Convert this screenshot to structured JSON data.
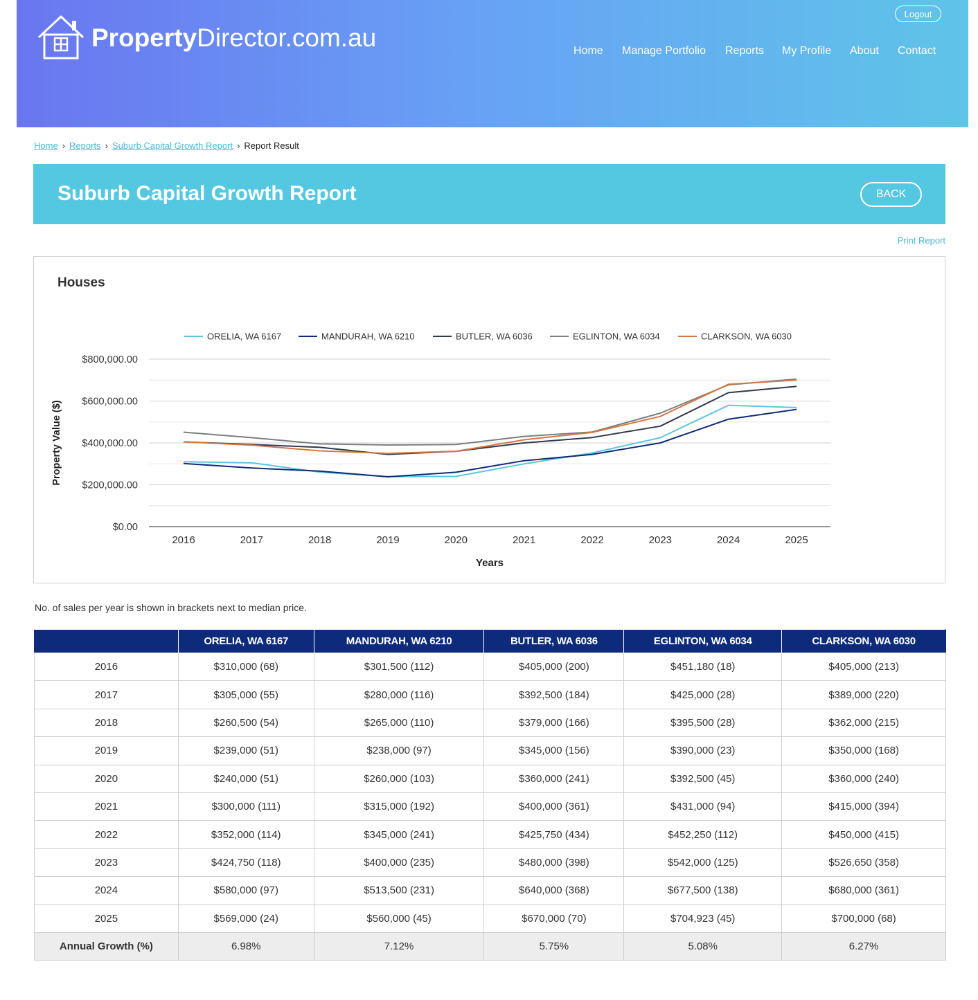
{
  "header": {
    "logo_strong": "Property",
    "logo_light": "Director.com.au",
    "logout_label": "Logout",
    "nav": [
      {
        "label": "Home"
      },
      {
        "label": "Manage Portfolio"
      },
      {
        "label": "Reports"
      },
      {
        "label": "My Profile"
      },
      {
        "label": "About"
      },
      {
        "label": "Contact"
      }
    ]
  },
  "breadcrumb": {
    "items": [
      "Home",
      "Reports",
      "Suburb Capital Growth Report"
    ],
    "current": "Report Result"
  },
  "banner": {
    "title": "Suburb Capital Growth Report",
    "back_label": "BACK"
  },
  "print_report_label": "Print Report",
  "chart_data": {
    "type": "line",
    "title": "Houses",
    "xlabel": "Years",
    "ylabel": "Property Value ($)",
    "x": [
      "2016",
      "2017",
      "2018",
      "2019",
      "2020",
      "2021",
      "2022",
      "2023",
      "2024",
      "2025"
    ],
    "ylim": [
      0,
      800000
    ],
    "yticks": [
      "$0.00",
      "$200,000.00",
      "$400,000.00",
      "$600,000.00",
      "$800,000.00"
    ],
    "legend_position": "top",
    "grid": true,
    "series": [
      {
        "name": "ORELIA, WA 6167",
        "color": "#5bc5df",
        "values": [
          310000,
          305000,
          260500,
          239000,
          240000,
          300000,
          352000,
          424750,
          580000,
          569000
        ]
      },
      {
        "name": "MANDURAH, WA 6210",
        "color": "#0d2b7a",
        "values": [
          301500,
          280000,
          265000,
          238000,
          260000,
          315000,
          345000,
          400000,
          513500,
          560000
        ]
      },
      {
        "name": "BUTLER, WA 6036",
        "color": "#2f3a4f",
        "values": [
          405000,
          392500,
          379000,
          345000,
          360000,
          400000,
          425750,
          480000,
          640000,
          670000
        ]
      },
      {
        "name": "EGLINTON, WA 6034",
        "color": "#7a7e80",
        "values": [
          451180,
          425000,
          395500,
          390000,
          392500,
          431000,
          452250,
          542000,
          677500,
          704923
        ]
      },
      {
        "name": "CLARKSON, WA 6030",
        "color": "#d6773f",
        "values": [
          405000,
          389000,
          362000,
          350000,
          360000,
          415000,
          450000,
          526650,
          680000,
          700000
        ]
      }
    ]
  },
  "note": "No. of sales per year is shown in brackets next to median price.",
  "table": {
    "headers": [
      "",
      "ORELIA, WA 6167",
      "MANDURAH, WA 6210",
      "BUTLER, WA 6036",
      "EGLINTON, WA 6034",
      "CLARKSON, WA 6030"
    ],
    "rows": [
      [
        "2016",
        "$310,000 (68)",
        "$301,500 (112)",
        "$405,000 (200)",
        "$451,180 (18)",
        "$405,000 (213)"
      ],
      [
        "2017",
        "$305,000 (55)",
        "$280,000 (116)",
        "$392,500 (184)",
        "$425,000 (28)",
        "$389,000 (220)"
      ],
      [
        "2018",
        "$260,500 (54)",
        "$265,000 (110)",
        "$379,000 (166)",
        "$395,500 (28)",
        "$362,000 (215)"
      ],
      [
        "2019",
        "$239,000 (51)",
        "$238,000 (97)",
        "$345,000 (156)",
        "$390,000 (23)",
        "$350,000 (168)"
      ],
      [
        "2020",
        "$240,000 (51)",
        "$260,000 (103)",
        "$360,000 (241)",
        "$392,500 (45)",
        "$360,000 (240)"
      ],
      [
        "2021",
        "$300,000 (111)",
        "$315,000 (192)",
        "$400,000 (361)",
        "$431,000 (94)",
        "$415,000 (394)"
      ],
      [
        "2022",
        "$352,000 (114)",
        "$345,000 (241)",
        "$425,750 (434)",
        "$452,250 (112)",
        "$450,000 (415)"
      ],
      [
        "2023",
        "$424,750 (118)",
        "$400,000 (235)",
        "$480,000 (398)",
        "$542,000 (125)",
        "$526,650 (358)"
      ],
      [
        "2024",
        "$580,000 (97)",
        "$513,500 (231)",
        "$640,000 (368)",
        "$677,500 (138)",
        "$680,000 (361)"
      ],
      [
        "2025",
        "$569,000 (24)",
        "$560,000 (45)",
        "$670,000 (70)",
        "$704,923 (45)",
        "$700,000 (68)"
      ]
    ],
    "growth": [
      "Annual Growth (%)",
      "6.98%",
      "7.12%",
      "5.75%",
      "5.08%",
      "6.27%"
    ]
  }
}
